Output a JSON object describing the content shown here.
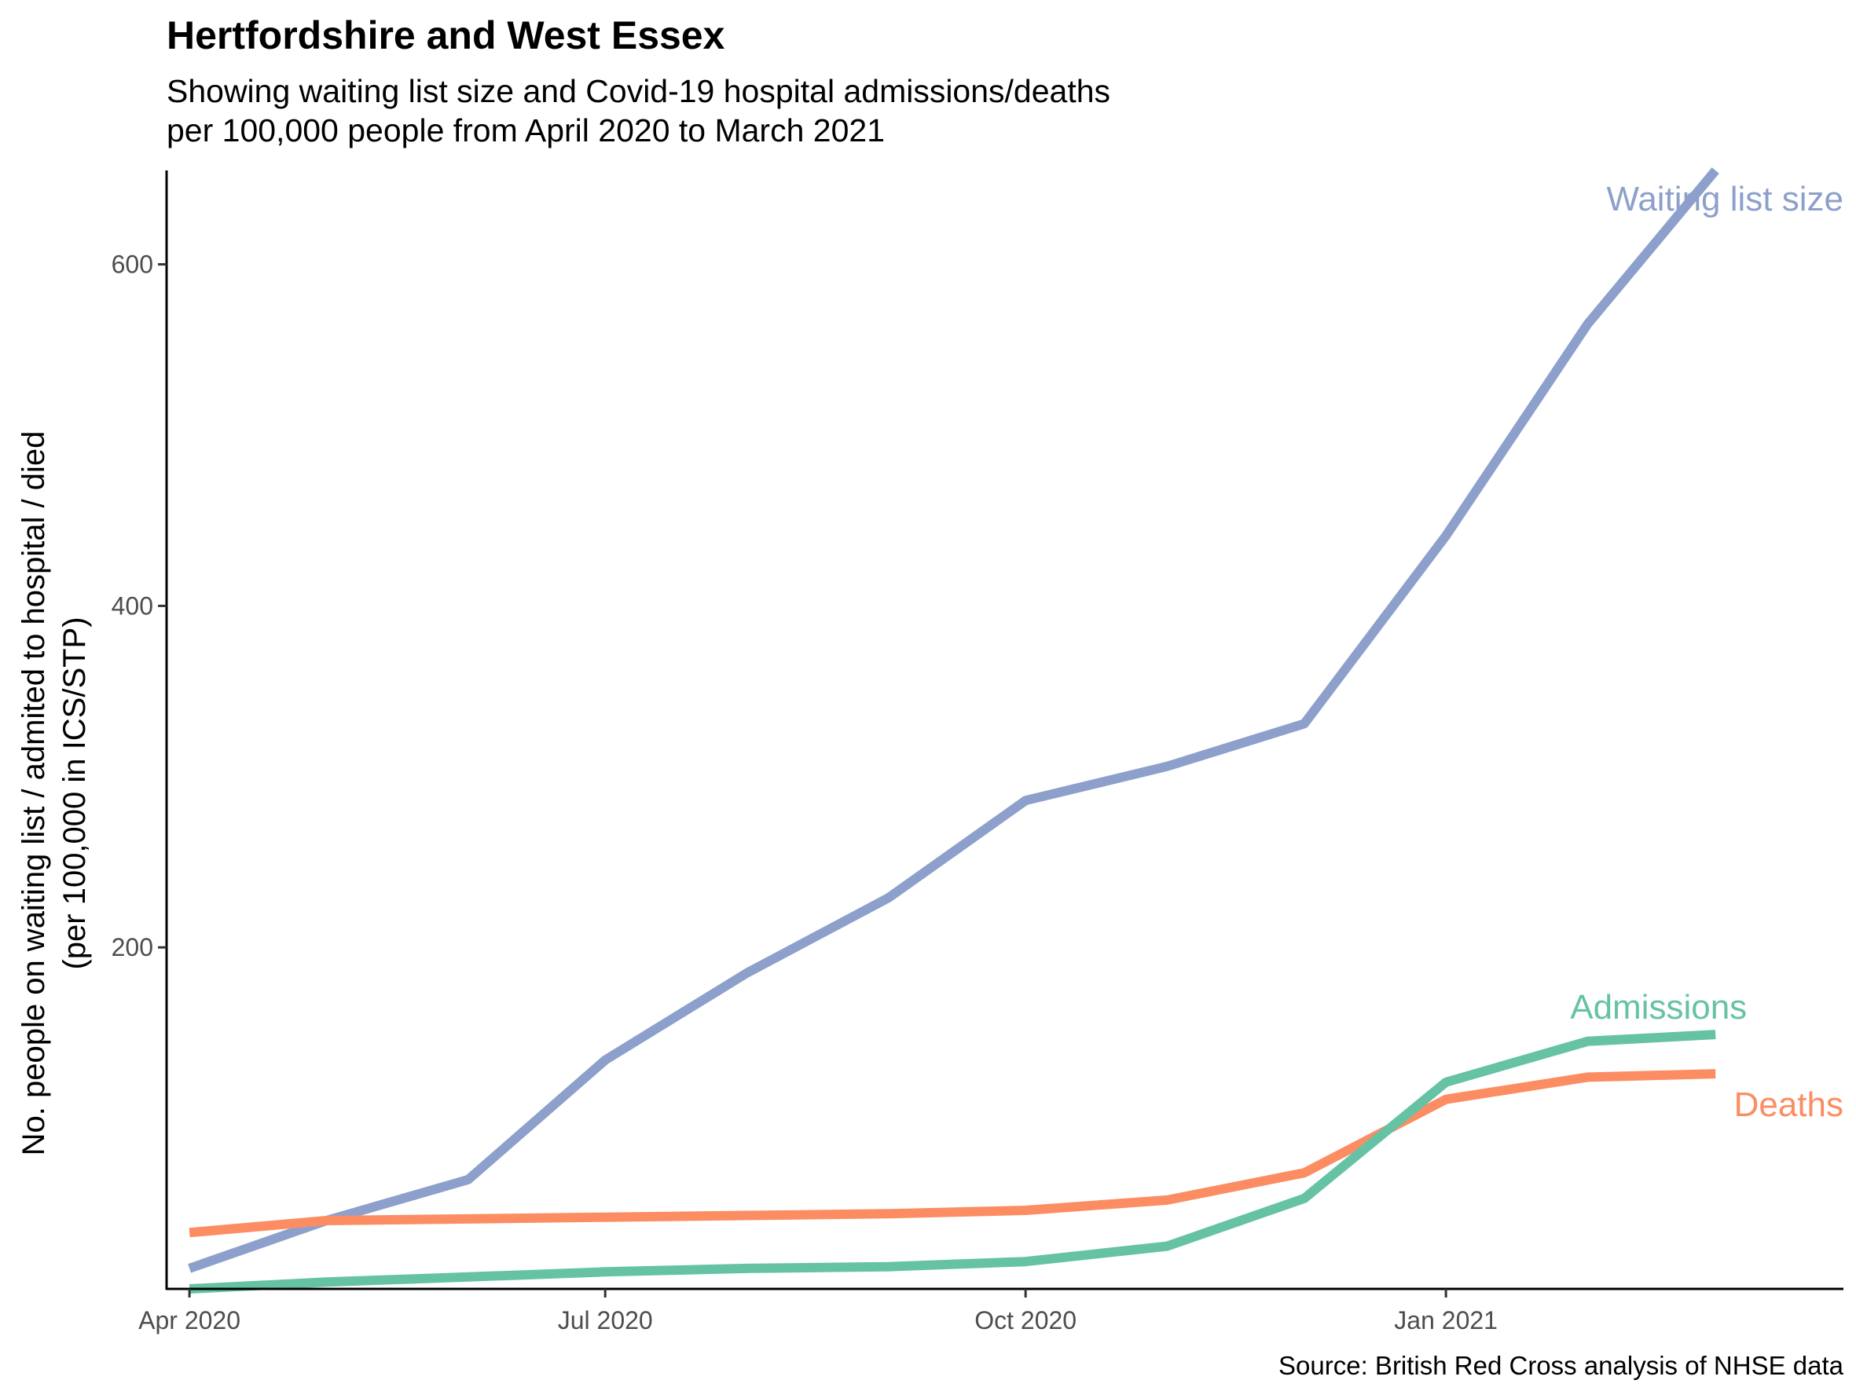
{
  "chart_data": {
    "type": "line",
    "title": "Hertfordshire and West Essex",
    "subtitle": [
      "Showing waiting list size and Covid-19 hospital admissions/deaths",
      "per 100,000 people from April 2020 to March 2021"
    ],
    "ylabel": [
      "No. people on waiting list / admited to hospital / died",
      "(per 100,000 in ICS/STP)"
    ],
    "xlabel": "",
    "caption": "Source: British Red Cross analysis of NHSE data",
    "x": [
      "2020-04-01",
      "2020-05-01",
      "2020-06-01",
      "2020-07-01",
      "2020-08-01",
      "2020-09-01",
      "2020-10-01",
      "2020-11-01",
      "2020-12-01",
      "2021-01-01",
      "2021-02-01",
      "2021-03-01"
    ],
    "xlim": [
      "2020-03-27",
      "2021-03-29"
    ],
    "ylim": [
      0,
      655
    ],
    "xticks": [
      {
        "date": "2020-04-01",
        "label": "Apr 2020"
      },
      {
        "date": "2020-07-01",
        "label": "Jul 2020"
      },
      {
        "date": "2020-10-01",
        "label": "Oct 2020"
      },
      {
        "date": "2021-01-01",
        "label": "Jan 2021"
      }
    ],
    "yticks": [
      {
        "value": 200,
        "label": "200"
      },
      {
        "value": 400,
        "label": "400"
      },
      {
        "value": 600,
        "label": "600"
      }
    ],
    "grid": false,
    "legend": "none",
    "series": [
      {
        "name": "Waiting list size",
        "color": "#8da0cb",
        "values": [
          12,
          40,
          64,
          134,
          185,
          229,
          286,
          306,
          331,
          441,
          565,
          655
        ]
      },
      {
        "name": "Admissions",
        "color": "#66c2a5",
        "values": [
          0,
          4,
          7,
          10,
          12,
          13,
          16,
          25,
          53,
          121,
          145,
          149
        ]
      },
      {
        "name": "Deaths",
        "color": "#fc8d62",
        "values": [
          33,
          40,
          41,
          42,
          43,
          44,
          46,
          52,
          68,
          111,
          124,
          126
        ]
      }
    ]
  }
}
